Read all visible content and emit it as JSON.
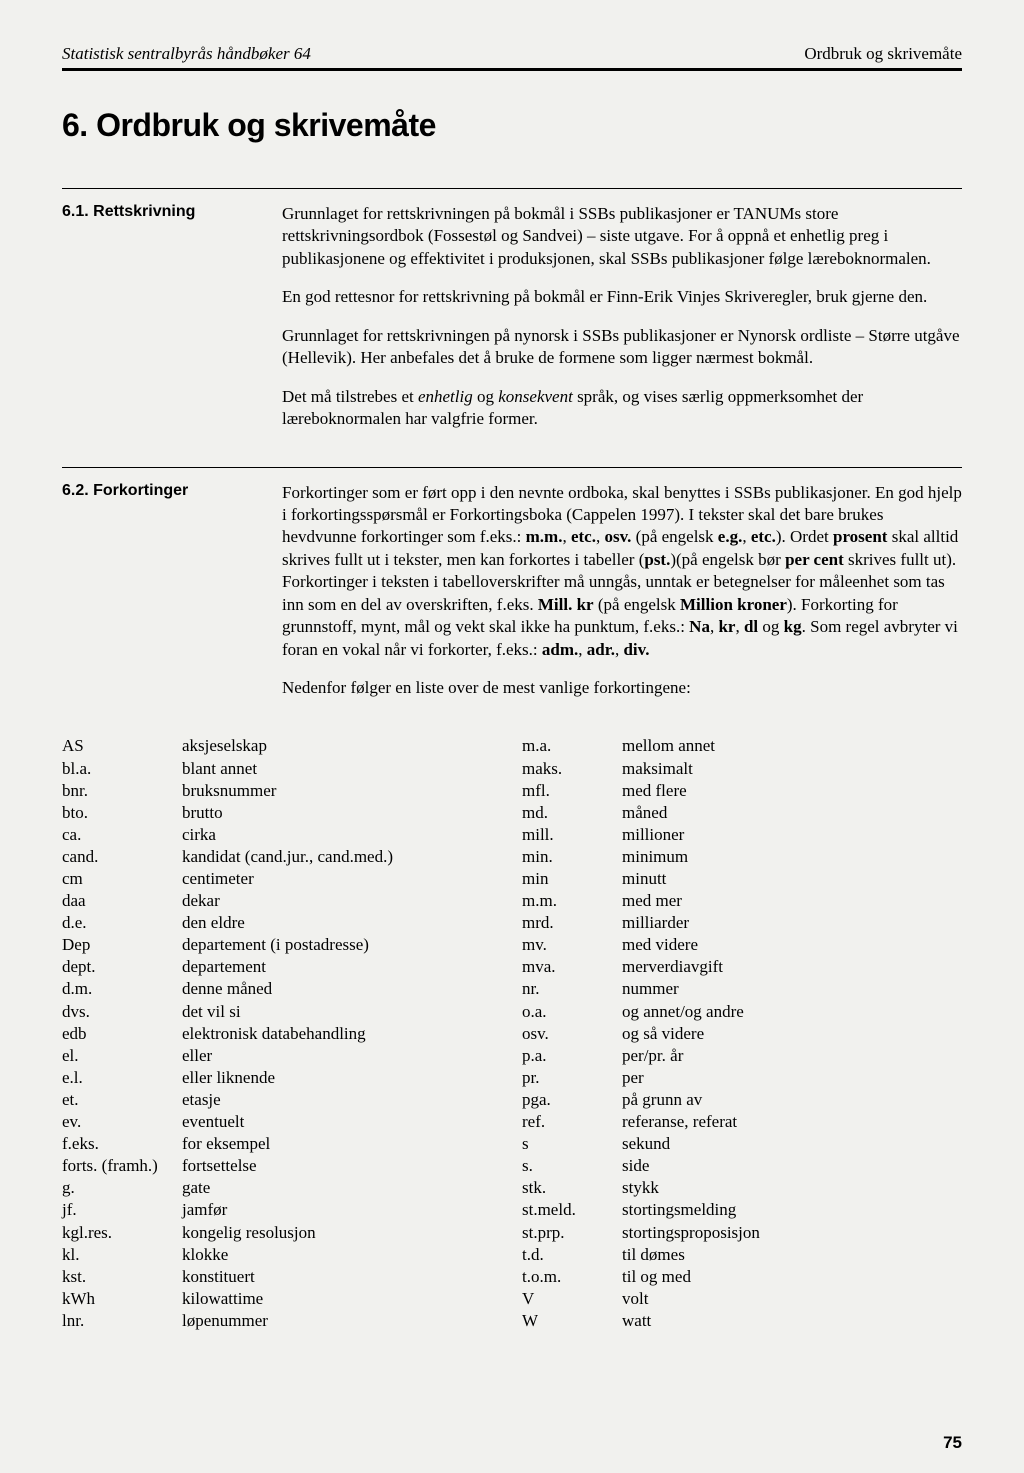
{
  "header": {
    "left": "Statistisk sentralbyrås håndbøker 64",
    "right": "Ordbruk og skrivemåte"
  },
  "chapter_title": "6. Ordbruk og skrivemåte",
  "section_61": {
    "label": "6.1. Rettskrivning",
    "p1": "Grunnlaget for rettskrivningen på bokmål i SSBs publikasjoner er TANUMs store rettskrivningsordbok (Fossestøl og Sandvei) – siste utgave. For å oppnå et enhetlig preg i publikasjonene og effektivitet i produksjonen, skal SSBs publikasjoner følge læreboknormalen.",
    "p2": "En god rettesnor for rettskrivning på bokmål er Finn-Erik Vinjes Skriveregler, bruk gjerne den.",
    "p3": "Grunnlaget for rettskrivningen på nynorsk i SSBs publikasjoner er Nynorsk ordliste – Større utgåve (Hellevik). Her anbefales det å bruke de formene som ligger nærmest bokmål.",
    "p4_a": "Det må tilstrebes et ",
    "p4_b": "enhetlig",
    "p4_c": " og ",
    "p4_d": "konsekvent",
    "p4_e": " språk, og vises særlig oppmerksomhet der læreboknormalen har valgfrie former."
  },
  "section_62": {
    "label": "6.2. Forkortinger",
    "p1_a": "Forkortinger som er ført opp i den nevnte ordboka, skal benyttes i SSBs publikasjoner. En god hjelp i forkortingsspørsmål er Forkortingsboka (Cappelen 1997). I tekster skal det bare brukes hevdvunne forkortinger som f.eks.: ",
    "p1_mm": "m.m.",
    "p1_c1": ", ",
    "p1_etc": "etc.",
    "p1_c2": ", ",
    "p1_osv": "osv.",
    "p1_d": " (på engelsk ",
    "p1_eg": "e.g.",
    "p1_d2": ", ",
    "p1_etc2": "etc.",
    "p1_e": "). Ordet ",
    "p1_prosent": "prosent",
    "p1_f": " skal alltid skrives fullt ut i tekster, men kan forkortes i tabeller (",
    "p1_pst": "pst.",
    "p1_g": ")(på engelsk bør ",
    "p1_percent": "per cent",
    "p1_h": " skrives fullt ut). Forkortinger i teksten i tabelloverskrifter må unngås, unntak er betegnelser for måleenhet som tas inn som en del av overskriften, f.eks. ",
    "p1_millkr": "Mill. kr",
    "p1_i": " (på engelsk ",
    "p1_millionkroner": "Million kroner",
    "p1_j": "). Forkorting for grunnstoff, mynt, mål og vekt skal ikke ha punktum, f.eks.: ",
    "p1_na": "Na",
    "p1_k1": ", ",
    "p1_kr": "kr",
    "p1_k2": ", ",
    "p1_dl": "dl",
    "p1_k3": " og ",
    "p1_kg": "kg",
    "p1_l": ". Som regel avbryter vi foran en vokal når vi forkorter, f.eks.: ",
    "p1_adm": "adm.",
    "p1_m1": ", ",
    "p1_adr": "adr.",
    "p1_m2": ", ",
    "p1_div": "div.",
    "p2": "Nedenfor følger en liste over de mest vanlige forkortingene:"
  },
  "abbr_left": [
    [
      "AS",
      "aksjeselskap"
    ],
    [
      "bl.a.",
      "blant annet"
    ],
    [
      "bnr.",
      "bruksnummer"
    ],
    [
      "bto.",
      "brutto"
    ],
    [
      "ca.",
      "cirka"
    ],
    [
      "cand.",
      "kandidat (cand.jur., cand.med.)"
    ],
    [
      "cm",
      "centimeter"
    ],
    [
      "daa",
      "dekar"
    ],
    [
      "d.e.",
      "den eldre"
    ],
    [
      "Dep",
      "departement (i postadresse)"
    ],
    [
      "dept.",
      "departement"
    ],
    [
      "d.m.",
      "denne måned"
    ],
    [
      "dvs.",
      "det vil si"
    ],
    [
      "edb",
      "elektronisk databehandling"
    ],
    [
      "el.",
      "eller"
    ],
    [
      "e.l.",
      "eller liknende"
    ],
    [
      "et.",
      "etasje"
    ],
    [
      "ev.",
      "eventuelt"
    ],
    [
      "f.eks.",
      "for eksempel"
    ],
    [
      "forts. (framh.)",
      "fortsettelse"
    ],
    [
      "g.",
      "gate"
    ],
    [
      "jf.",
      "jamfør"
    ],
    [
      "kgl.res.",
      "kongelig resolusjon"
    ],
    [
      "kl.",
      "klokke"
    ],
    [
      "kst.",
      "konstituert"
    ],
    [
      "kWh",
      "kilowattime"
    ],
    [
      "lnr.",
      "løpenummer"
    ]
  ],
  "abbr_right": [
    [
      "m.a.",
      "mellom annet"
    ],
    [
      "maks.",
      "maksimalt"
    ],
    [
      "mfl.",
      "med flere"
    ],
    [
      "md.",
      "måned"
    ],
    [
      "mill.",
      "millioner"
    ],
    [
      "min.",
      "minimum"
    ],
    [
      "min",
      "minutt"
    ],
    [
      "m.m.",
      "med mer"
    ],
    [
      "mrd.",
      "milliarder"
    ],
    [
      "mv.",
      "med videre"
    ],
    [
      "mva.",
      "merverdiavgift"
    ],
    [
      "nr.",
      "nummer"
    ],
    [
      "o.a.",
      "og annet/og andre"
    ],
    [
      "osv.",
      "og så videre"
    ],
    [
      "p.a.",
      "per/pr. år"
    ],
    [
      "pr.",
      "per"
    ],
    [
      "pga.",
      "på grunn av"
    ],
    [
      "ref.",
      "referanse, referat"
    ],
    [
      "s",
      "sekund"
    ],
    [
      "s.",
      "side"
    ],
    [
      "stk.",
      "stykk"
    ],
    [
      "st.meld.",
      "stortingsmelding"
    ],
    [
      "st.prp.",
      "stortingsproposisjon"
    ],
    [
      "t.d.",
      "til dømes"
    ],
    [
      "t.o.m.",
      "til og med"
    ],
    [
      "V",
      "volt"
    ],
    [
      "W",
      "watt"
    ]
  ],
  "page_number": "75"
}
